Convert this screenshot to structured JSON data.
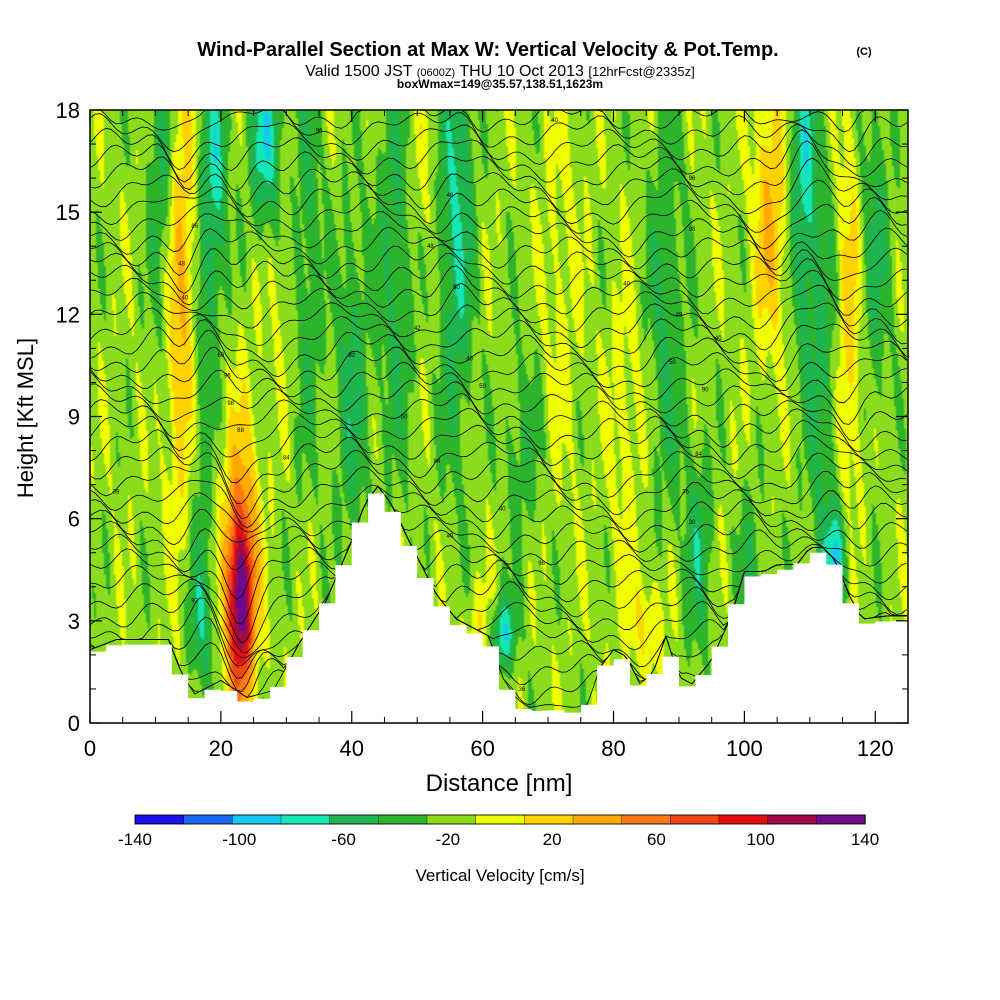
{
  "chart_data": {
    "type": "heatmap",
    "title": "Wind-Parallel Section at Max W: Vertical Velocity & Pot.Temp.",
    "title_mark": "(C)",
    "subtitle_parts": [
      "Valid 1500 JST ",
      "(0600Z)",
      " THU 10 Oct 2013 ",
      "[12hrFcst@2335z]"
    ],
    "subtitle2": "boxWmax=149@35.57,138.51,1623m",
    "xlabel": "Distance [nm]",
    "ylabel": "Height [Kft MSL]",
    "xlim": [
      0,
      125
    ],
    "ylim": [
      0,
      18
    ],
    "xticks": [
      0,
      20,
      40,
      60,
      80,
      100,
      120
    ],
    "yticks": [
      0,
      3,
      6,
      9,
      12,
      15,
      18
    ],
    "colorbar": {
      "label": "Vertical Velocity [cm/s]",
      "levels": [
        -160,
        -140,
        -120,
        -100,
        -80,
        -60,
        -40,
        -20,
        0,
        20,
        40,
        60,
        80,
        100,
        120,
        140,
        160
      ],
      "tick_labels": [
        -140,
        -100,
        -60,
        -20,
        20,
        60,
        100,
        140
      ],
      "colors": [
        "#1a10e6",
        "#1a66f0",
        "#14c8f0",
        "#14e6b4",
        "#1eb450",
        "#2db42d",
        "#8cdc1e",
        "#f0ff00",
        "#ffd200",
        "#ffaa00",
        "#ff7814",
        "#f04614",
        "#e60f0f",
        "#a00a46",
        "#6e0a8c"
      ]
    },
    "max_w": {
      "value": 149,
      "x": 23,
      "y": 3.5
    },
    "terrain": [
      [
        0,
        2
      ],
      [
        4,
        2.3
      ],
      [
        12,
        2.3
      ],
      [
        14,
        1.3
      ],
      [
        16,
        0.7
      ],
      [
        20,
        1.1
      ],
      [
        24,
        0.6
      ],
      [
        28,
        0.8
      ],
      [
        32,
        2.2
      ],
      [
        36,
        3.4
      ],
      [
        40,
        5.2
      ],
      [
        42,
        6.3
      ],
      [
        44,
        6.8
      ],
      [
        46,
        6.3
      ],
      [
        49,
        5.1
      ],
      [
        53,
        3.6
      ],
      [
        56,
        2.9
      ],
      [
        58,
        2.7
      ],
      [
        61,
        2.4
      ],
      [
        63,
        1.2
      ],
      [
        65,
        0.6
      ],
      [
        67,
        0.3
      ],
      [
        70,
        0.4
      ],
      [
        74,
        0.3
      ],
      [
        76,
        0.4
      ],
      [
        78,
        1.5
      ],
      [
        80,
        2
      ],
      [
        82,
        1.8
      ],
      [
        84,
        1
      ],
      [
        86,
        1.3
      ],
      [
        88,
        2.4
      ],
      [
        90,
        1.2
      ],
      [
        92,
        1
      ],
      [
        95,
        1.7
      ],
      [
        98,
        3
      ],
      [
        100,
        4.3
      ],
      [
        103,
        4.3
      ],
      [
        105,
        4.5
      ],
      [
        108,
        4.5
      ],
      [
        110,
        5
      ],
      [
        112,
        5
      ],
      [
        114,
        4.6
      ],
      [
        116,
        3.6
      ],
      [
        118,
        2.9
      ],
      [
        122,
        3
      ],
      [
        125,
        3
      ]
    ],
    "updrafts": [
      [
        23,
        3.5,
        2.1,
        2.8,
        149
      ],
      [
        14,
        12.5,
        2.5,
        6.5,
        55
      ],
      [
        23,
        6,
        3,
        4,
        40
      ],
      [
        60,
        2.5,
        3,
        1.5,
        30
      ],
      [
        85,
        3,
        3,
        1.5,
        30
      ],
      [
        104,
        15,
        2.5,
        4,
        50
      ],
      [
        116,
        12,
        2,
        6,
        40
      ],
      [
        82,
        9,
        3,
        4,
        20
      ],
      [
        30,
        14,
        2.5,
        4,
        20
      ],
      [
        50,
        16,
        2.5,
        4,
        20
      ],
      [
        72,
        13,
        3,
        6,
        15
      ]
    ],
    "downdrafts": [
      [
        11,
        16,
        2,
        5,
        -40
      ],
      [
        17,
        9,
        2,
        6,
        -30
      ],
      [
        17,
        3,
        2,
        2,
        -40
      ],
      [
        19,
        16,
        2,
        4,
        -60
      ],
      [
        27,
        17,
        2.5,
        2.5,
        -70
      ],
      [
        33,
        14,
        2.5,
        6,
        -35
      ],
      [
        40,
        10,
        2.5,
        5,
        -40
      ],
      [
        47,
        14,
        3,
        6,
        -40
      ],
      [
        56,
        15,
        2.5,
        7,
        -55
      ],
      [
        63,
        2.6,
        2,
        1.1,
        -80
      ],
      [
        88,
        12,
        3,
        6,
        -35
      ],
      [
        93,
        5,
        2,
        3,
        -40
      ],
      [
        101,
        4.5,
        2,
        2.5,
        -30
      ],
      [
        109,
        16,
        2,
        5,
        -60
      ],
      [
        112,
        10,
        2.5,
        7,
        -35
      ],
      [
        114,
        4.8,
        2,
        1.5,
        -60
      ],
      [
        120,
        14,
        2.5,
        5,
        -35
      ],
      [
        66,
        8,
        3,
        3,
        -25
      ]
    ],
    "bg_w": -8,
    "theta_levels": [
      305,
      306,
      307,
      308,
      309,
      310,
      311,
      312,
      313,
      314,
      315,
      316,
      317,
      318,
      319,
      320,
      321,
      322,
      323,
      324,
      325,
      326,
      327,
      328,
      329,
      330,
      331,
      332,
      333,
      334,
      335,
      336,
      337,
      338,
      339,
      340,
      341,
      342,
      343,
      344
    ],
    "theta_labels": [
      {
        "text": "38",
        "x": 4,
        "y": 6.8
      },
      {
        "text": "96",
        "x": 35,
        "y": 17.4
      },
      {
        "text": "92",
        "x": 40,
        "y": 10.8
      },
      {
        "text": "86",
        "x": 16,
        "y": 14.6
      },
      {
        "text": "48",
        "x": 14,
        "y": 13.5
      },
      {
        "text": "40",
        "x": 14.5,
        "y": 12.5
      },
      {
        "text": "60",
        "x": 20,
        "y": 10.8
      },
      {
        "text": "96",
        "x": 21,
        "y": 10.2
      },
      {
        "text": "98",
        "x": 21.5,
        "y": 9.4
      },
      {
        "text": "88",
        "x": 23,
        "y": 8.6
      },
      {
        "text": "84",
        "x": 30,
        "y": 7.8
      },
      {
        "text": "48",
        "x": 55,
        "y": 15.5
      },
      {
        "text": "48",
        "x": 52,
        "y": 14.0
      },
      {
        "text": "50",
        "x": 56,
        "y": 12.8
      },
      {
        "text": "42",
        "x": 50,
        "y": 11.6
      },
      {
        "text": "40",
        "x": 58,
        "y": 10.7
      },
      {
        "text": "50",
        "x": 60,
        "y": 9.9
      },
      {
        "text": "50",
        "x": 48,
        "y": 9.0
      },
      {
        "text": "84",
        "x": 53,
        "y": 7.7
      },
      {
        "text": "40",
        "x": 63,
        "y": 6.3
      },
      {
        "text": "40",
        "x": 55,
        "y": 5.5
      },
      {
        "text": "98",
        "x": 69,
        "y": 4.7
      },
      {
        "text": "40",
        "x": 71,
        "y": 17.7
      },
      {
        "text": "96",
        "x": 92,
        "y": 16.0
      },
      {
        "text": "98",
        "x": 92,
        "y": 14.5
      },
      {
        "text": "40",
        "x": 82,
        "y": 12.9
      },
      {
        "text": "49",
        "x": 90,
        "y": 12.0
      },
      {
        "text": "40",
        "x": 96,
        "y": 11.3
      },
      {
        "text": "50",
        "x": 89,
        "y": 10.6
      },
      {
        "text": "90",
        "x": 94,
        "y": 9.8
      },
      {
        "text": "84",
        "x": 93,
        "y": 7.9
      },
      {
        "text": "36",
        "x": 91,
        "y": 6.8
      },
      {
        "text": "30",
        "x": 92,
        "y": 5.9
      },
      {
        "text": "92",
        "x": 16,
        "y": 3.6
      },
      {
        "text": "36",
        "x": 66,
        "y": 1.0
      }
    ]
  }
}
